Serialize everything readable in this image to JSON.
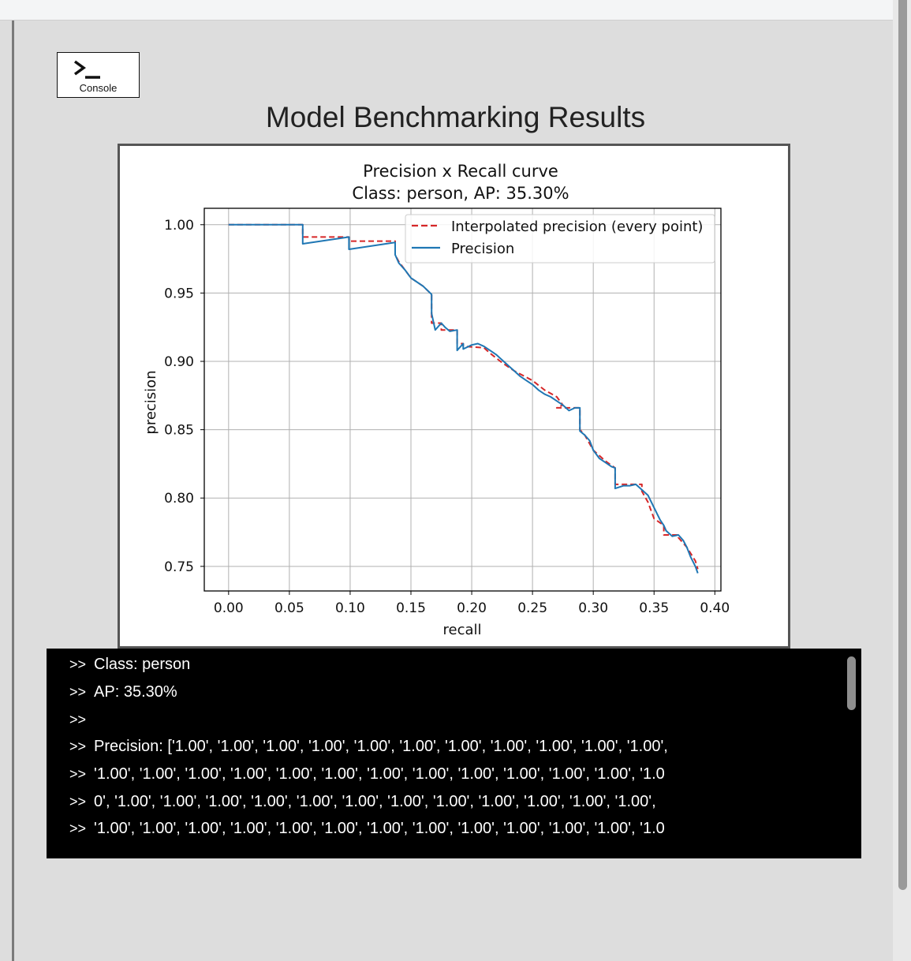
{
  "console_button": {
    "label": "Console",
    "icon": "terminal-prompt-icon"
  },
  "page": {
    "title": "Model Benchmarking Results"
  },
  "chart_data": {
    "type": "line",
    "title": "Precision x Recall curve",
    "subtitle": "Class: person, AP: 35.30%",
    "xlabel": "recall",
    "ylabel": "precision",
    "xlim": [
      -0.02,
      0.405
    ],
    "ylim": [
      0.732,
      1.012
    ],
    "xticks": [
      "0.00",
      "0.05",
      "0.10",
      "0.15",
      "0.20",
      "0.25",
      "0.30",
      "0.35",
      "0.40"
    ],
    "yticks": [
      "0.75",
      "0.80",
      "0.85",
      "0.90",
      "0.95",
      "1.00"
    ],
    "grid": true,
    "legend_position": "top-right",
    "series": [
      {
        "name": "Interpolated precision (every point)",
        "style": "dashed",
        "color": "#d62728",
        "x": [
          0.0,
          0.061,
          0.061,
          0.099,
          0.099,
          0.137,
          0.137,
          0.14,
          0.15,
          0.16,
          0.167,
          0.167,
          0.175,
          0.175,
          0.188,
          0.188,
          0.193,
          0.193,
          0.21,
          0.215,
          0.225,
          0.235,
          0.25,
          0.26,
          0.27,
          0.275,
          0.27,
          0.289,
          0.289,
          0.293,
          0.3,
          0.305,
          0.31,
          0.318,
          0.318,
          0.34,
          0.34,
          0.345,
          0.35,
          0.358,
          0.358,
          0.37,
          0.37,
          0.377,
          0.384,
          0.386
        ],
        "y": [
          1.0,
          1.0,
          0.991,
          0.991,
          0.988,
          0.988,
          0.978,
          0.973,
          0.961,
          0.955,
          0.949,
          0.928,
          0.928,
          0.923,
          0.923,
          0.913,
          0.913,
          0.911,
          0.91,
          0.906,
          0.899,
          0.893,
          0.886,
          0.879,
          0.874,
          0.868,
          0.866,
          0.866,
          0.85,
          0.846,
          0.835,
          0.831,
          0.827,
          0.822,
          0.81,
          0.81,
          0.805,
          0.797,
          0.785,
          0.78,
          0.773,
          0.773,
          0.771,
          0.764,
          0.754,
          0.748
        ]
      },
      {
        "name": "Precision",
        "style": "solid",
        "color": "#1f77b4",
        "x": [
          0.0,
          0.061,
          0.061,
          0.099,
          0.099,
          0.137,
          0.137,
          0.14,
          0.145,
          0.15,
          0.155,
          0.16,
          0.167,
          0.167,
          0.17,
          0.175,
          0.178,
          0.182,
          0.188,
          0.188,
          0.193,
          0.193,
          0.2,
          0.205,
          0.21,
          0.215,
          0.22,
          0.225,
          0.23,
          0.235,
          0.24,
          0.245,
          0.25,
          0.255,
          0.26,
          0.265,
          0.27,
          0.275,
          0.28,
          0.285,
          0.289,
          0.289,
          0.293,
          0.297,
          0.3,
          0.305,
          0.31,
          0.315,
          0.318,
          0.318,
          0.325,
          0.33,
          0.335,
          0.34,
          0.345,
          0.35,
          0.355,
          0.358,
          0.36,
          0.365,
          0.37,
          0.374,
          0.377,
          0.38,
          0.384,
          0.386
        ],
        "y": [
          1.0,
          1.0,
          0.986,
          0.991,
          0.982,
          0.987,
          0.978,
          0.972,
          0.967,
          0.961,
          0.958,
          0.955,
          0.949,
          0.935,
          0.923,
          0.928,
          0.925,
          0.922,
          0.923,
          0.908,
          0.913,
          0.909,
          0.912,
          0.913,
          0.911,
          0.908,
          0.905,
          0.901,
          0.897,
          0.893,
          0.889,
          0.886,
          0.883,
          0.879,
          0.876,
          0.874,
          0.871,
          0.868,
          0.864,
          0.866,
          0.866,
          0.849,
          0.846,
          0.842,
          0.835,
          0.829,
          0.826,
          0.823,
          0.822,
          0.807,
          0.809,
          0.809,
          0.81,
          0.806,
          0.802,
          0.793,
          0.784,
          0.78,
          0.776,
          0.772,
          0.773,
          0.769,
          0.764,
          0.757,
          0.75,
          0.745
        ]
      }
    ]
  },
  "console": {
    "prompt": ">>",
    "lines": [
      "Class: person",
      "AP: 35.30%",
      "",
      "Precision: ['1.00', '1.00', '1.00', '1.00', '1.00', '1.00', '1.00', '1.00', '1.00', '1.00', '1.00',",
      "'1.00', '1.00', '1.00', '1.00', '1.00', '1.00', '1.00', '1.00', '1.00', '1.00', '1.00', '1.00', '1.0",
      "0', '1.00', '1.00', '1.00', '1.00', '1.00', '1.00', '1.00', '1.00', '1.00', '1.00', '1.00', '1.00',",
      "'1.00', '1.00', '1.00', '1.00', '1.00', '1.00', '1.00', '1.00', '1.00', '1.00', '1.00', '1.00', '1.0"
    ]
  }
}
